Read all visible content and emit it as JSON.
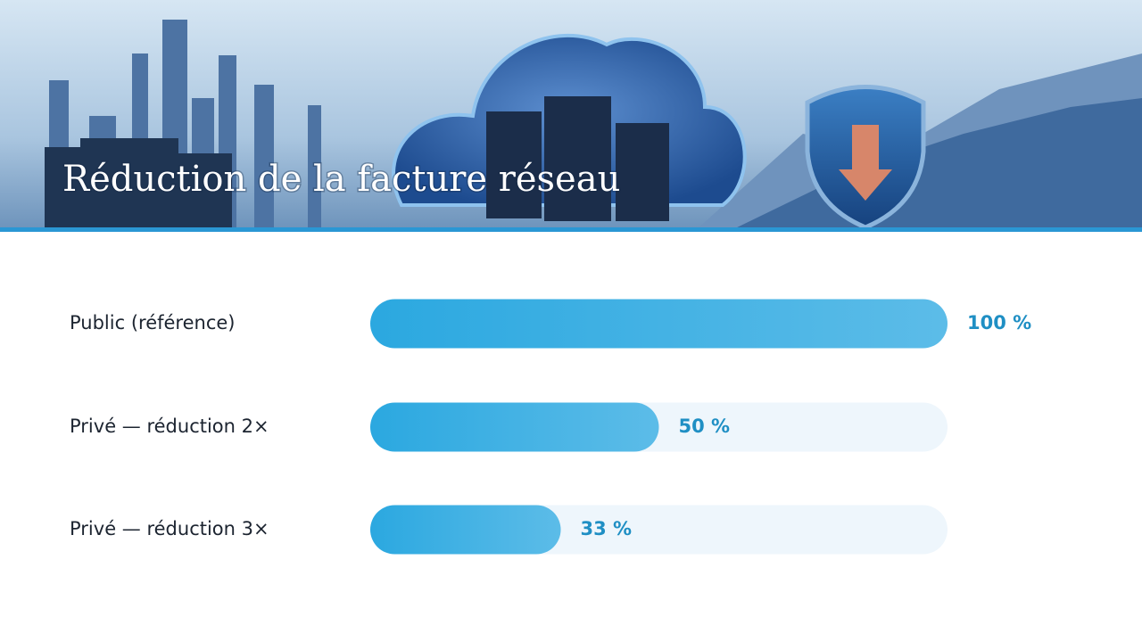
{
  "chart_data": {
    "type": "bar",
    "orientation": "horizontal",
    "title": "Réduction de la facture réseau",
    "categories": [
      "Public (référence)",
      "Privé — réduction 2×",
      "Privé — réduction 3×"
    ],
    "values": [
      100,
      50,
      33
    ],
    "value_labels": [
      "100 %",
      "50 %",
      "33 %"
    ],
    "xlim": [
      0,
      100
    ],
    "color": "#2ba8e0"
  }
}
